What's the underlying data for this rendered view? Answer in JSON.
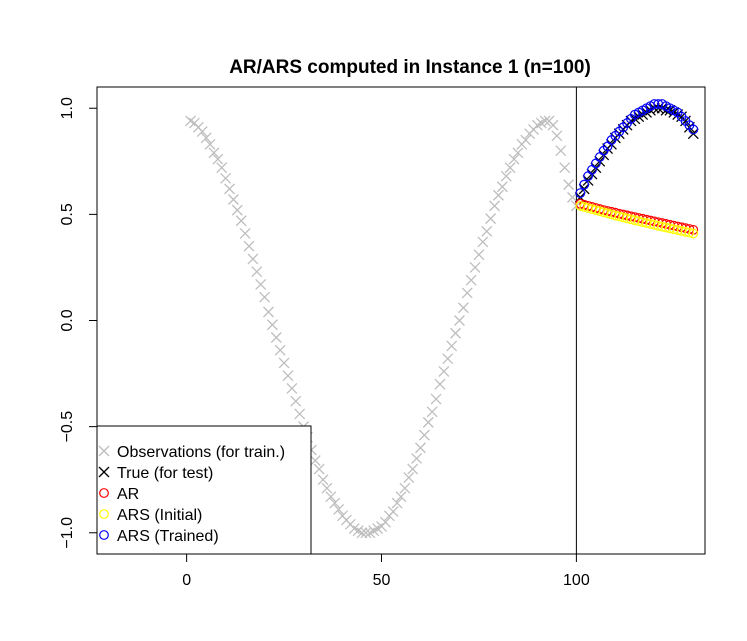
{
  "chart_data": {
    "type": "scatter",
    "title": "AR/ARS computed in Instance 1 (n=100)",
    "xlabel": "",
    "ylabel": "",
    "xlim": [
      -23,
      133
    ],
    "ylim": [
      -1.1,
      1.1
    ],
    "x_ticks": [
      {
        "value": 0,
        "label": "0"
      },
      {
        "value": 50,
        "label": "50"
      },
      {
        "value": 100,
        "label": "100"
      }
    ],
    "y_ticks": [
      {
        "value": -1.0,
        "label": "−1.0"
      },
      {
        "value": -0.5,
        "label": "−0.5"
      },
      {
        "value": 0.0,
        "label": "0.0"
      },
      {
        "value": 0.5,
        "label": "0.5"
      },
      {
        "value": 1.0,
        "label": "1.0"
      }
    ],
    "vline": 100,
    "grid": false,
    "legend": {
      "position": "bottom-left"
    },
    "series": [
      {
        "name": "Observations (for train.)",
        "marker": "x",
        "color": "#bebebe",
        "x": [
          1,
          2,
          3,
          4,
          5,
          6,
          7,
          8,
          9,
          10,
          11,
          12,
          13,
          14,
          15,
          16,
          17,
          18,
          19,
          20,
          21,
          22,
          23,
          24,
          25,
          26,
          27,
          28,
          29,
          30,
          31,
          32,
          33,
          34,
          35,
          36,
          37,
          38,
          39,
          40,
          41,
          42,
          43,
          44,
          45,
          46,
          47,
          48,
          49,
          50,
          51,
          52,
          53,
          54,
          55,
          56,
          57,
          58,
          59,
          60,
          61,
          62,
          63,
          64,
          65,
          66,
          67,
          68,
          69,
          70,
          71,
          72,
          73,
          74,
          75,
          76,
          77,
          78,
          79,
          80,
          81,
          82,
          83,
          84,
          85,
          86,
          87,
          88,
          89,
          90,
          91,
          92,
          93,
          94,
          95,
          96,
          97,
          98,
          99,
          100
        ],
        "y": [
          0.94,
          0.93,
          0.91,
          0.89,
          0.86,
          0.83,
          0.79,
          0.76,
          0.72,
          0.67,
          0.62,
          0.57,
          0.52,
          0.47,
          0.41,
          0.35,
          0.29,
          0.23,
          0.17,
          0.11,
          0.04,
          -0.02,
          -0.08,
          -0.14,
          -0.2,
          -0.26,
          -0.32,
          -0.38,
          -0.44,
          -0.5,
          -0.55,
          -0.61,
          -0.66,
          -0.7,
          -0.75,
          -0.79,
          -0.83,
          -0.86,
          -0.89,
          -0.92,
          -0.94,
          -0.96,
          -0.98,
          -0.99,
          -1.0,
          -1.0,
          -1.0,
          -0.99,
          -0.98,
          -0.97,
          -0.95,
          -0.92,
          -0.9,
          -0.86,
          -0.83,
          -0.79,
          -0.74,
          -0.7,
          -0.65,
          -0.6,
          -0.54,
          -0.48,
          -0.43,
          -0.37,
          -0.3,
          -0.24,
          -0.18,
          -0.12,
          -0.06,
          0.0,
          0.06,
          0.13,
          0.19,
          0.25,
          0.31,
          0.37,
          0.42,
          0.48,
          0.54,
          0.59,
          0.63,
          0.68,
          0.72,
          0.76,
          0.79,
          0.83,
          0.85,
          0.88,
          0.9,
          0.92,
          0.93,
          0.94,
          0.94,
          0.92,
          0.87,
          0.8,
          0.72,
          0.64,
          0.58,
          0.54
        ]
      },
      {
        "name": "True (for test)",
        "marker": "x",
        "color": "#000000",
        "x": [
          101,
          102,
          103,
          104,
          105,
          106,
          107,
          108,
          109,
          110,
          111,
          112,
          113,
          114,
          115,
          116,
          117,
          118,
          119,
          120,
          121,
          122,
          123,
          124,
          125,
          126,
          127,
          128,
          129,
          130
        ],
        "y": [
          0.58,
          0.62,
          0.66,
          0.69,
          0.72,
          0.75,
          0.78,
          0.81,
          0.83,
          0.86,
          0.88,
          0.9,
          0.92,
          0.94,
          0.95,
          0.96,
          0.97,
          0.98,
          0.99,
          1.0,
          1.0,
          1.0,
          0.99,
          0.99,
          0.98,
          0.97,
          0.96,
          0.94,
          0.91,
          0.88
        ]
      },
      {
        "name": "AR",
        "marker": "o",
        "color": "#ff0000",
        "x": [
          101,
          102,
          103,
          104,
          105,
          106,
          107,
          108,
          109,
          110,
          111,
          112,
          113,
          114,
          115,
          116,
          117,
          118,
          119,
          120,
          121,
          122,
          123,
          124,
          125,
          126,
          127,
          128,
          129,
          130
        ],
        "y": [
          0.55,
          0.545,
          0.54,
          0.535,
          0.53,
          0.525,
          0.52,
          0.516,
          0.512,
          0.508,
          0.503,
          0.499,
          0.495,
          0.491,
          0.487,
          0.483,
          0.479,
          0.475,
          0.471,
          0.467,
          0.463,
          0.459,
          0.455,
          0.451,
          0.447,
          0.443,
          0.439,
          0.435,
          0.431,
          0.427
        ]
      },
      {
        "name": "ARS (Initial)",
        "marker": "o",
        "color": "#ffff00",
        "x": [
          101,
          102,
          103,
          104,
          105,
          106,
          107,
          108,
          109,
          110,
          111,
          112,
          113,
          114,
          115,
          116,
          117,
          118,
          119,
          120,
          121,
          122,
          123,
          124,
          125,
          126,
          127,
          128,
          129,
          130
        ],
        "y": [
          0.54,
          0.535,
          0.53,
          0.525,
          0.52,
          0.515,
          0.51,
          0.505,
          0.5,
          0.495,
          0.49,
          0.486,
          0.481,
          0.477,
          0.472,
          0.468,
          0.463,
          0.459,
          0.455,
          0.451,
          0.446,
          0.442,
          0.438,
          0.434,
          0.43,
          0.426,
          0.422,
          0.418,
          0.414,
          0.41
        ]
      },
      {
        "name": "ARS (Trained)",
        "marker": "o",
        "color": "#0000ff",
        "x": [
          101,
          102,
          103,
          104,
          105,
          106,
          107,
          108,
          109,
          110,
          111,
          112,
          113,
          114,
          115,
          116,
          117,
          118,
          119,
          120,
          121,
          122,
          123,
          124,
          125,
          126,
          127,
          128,
          129,
          130
        ],
        "y": [
          0.6,
          0.64,
          0.68,
          0.71,
          0.74,
          0.77,
          0.8,
          0.82,
          0.85,
          0.87,
          0.89,
          0.91,
          0.93,
          0.95,
          0.97,
          0.98,
          0.99,
          1.0,
          1.01,
          1.02,
          1.02,
          1.02,
          1.01,
          1.0,
          0.99,
          0.98,
          0.96,
          0.94,
          0.92,
          0.9
        ]
      }
    ]
  }
}
